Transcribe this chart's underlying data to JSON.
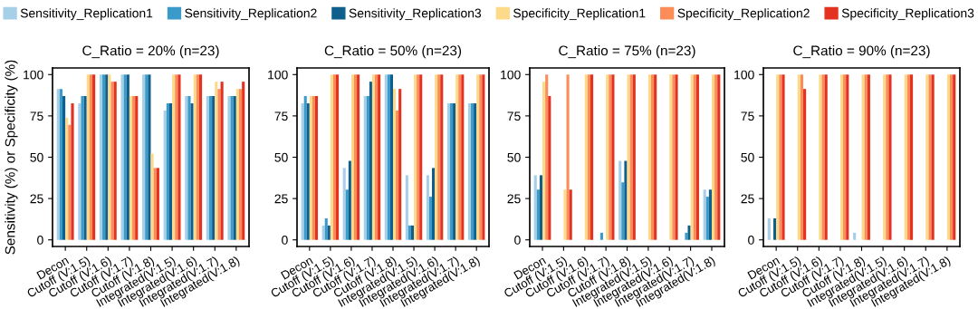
{
  "chart_data": [
    {
      "type": "bar",
      "title": "C_Ratio = 20% (n=23)",
      "ylabel": "Sensitivity (%) or Specificity (%)",
      "legend": "top",
      "grid": false,
      "categories": [
        "Decon",
        "Cutoff (V:1.5)",
        "Cutoff (V:1.6)",
        "Cutoff (V:1.7)",
        "Cutoff (V:1.8)",
        "Integrated(V:1.5)",
        "Integrated(V:1.6)",
        "Integrated(V:1.7)",
        "Integrated(V:1.8)"
      ],
      "ylim": [
        -4,
        104
      ],
      "yticks": [
        0,
        25,
        50,
        75,
        100
      ],
      "series": [
        {
          "name": "Sensitivity_Replication1",
          "color": "#a6cfe8",
          "values": [
            91.3,
            82.6,
            100,
            100,
            100,
            78.3,
            87,
            87,
            87
          ]
        },
        {
          "name": "Sensitivity_Replication2",
          "color": "#3a9ac9",
          "values": [
            91.3,
            87,
            100,
            100,
            100,
            82.6,
            87,
            87,
            87
          ]
        },
        {
          "name": "Sensitivity_Replication3",
          "color": "#0f5f8c",
          "values": [
            87,
            87,
            100,
            100,
            100,
            82.6,
            82.6,
            87,
            87
          ]
        },
        {
          "name": "Specificity_Replication1",
          "color": "#fdd98a",
          "values": [
            73.9,
            100,
            100,
            87,
            52.2,
            100,
            100,
            95.7,
            91.3
          ]
        },
        {
          "name": "Specificity_Replication2",
          "color": "#fc8d59",
          "values": [
            69.6,
            100,
            95.7,
            87,
            43.5,
            100,
            100,
            91.3,
            91.3
          ]
        },
        {
          "name": "Specificity_Replication3",
          "color": "#e3321f",
          "values": [
            82.6,
            100,
            95.7,
            87,
            43.5,
            100,
            100,
            95.7,
            95.7
          ]
        }
      ]
    },
    {
      "type": "bar",
      "title": "C_Ratio = 50% (n=23)",
      "grid": false,
      "categories": [
        "Decon",
        "Cutoff (V:1.5)",
        "Cutoff (V:1.6)",
        "Cutoff (V:1.7)",
        "Cutoff (V:1.8)",
        "Integrated(V:1.5)",
        "Integrated(V:1.6)",
        "Integrated(V:1.7)",
        "Integrated(V:1.8)"
      ],
      "ylim": [
        -4,
        104
      ],
      "yticks": [
        0,
        25,
        50,
        75,
        100
      ],
      "series": [
        {
          "color": "#a6cfe8",
          "values": [
            82.6,
            8.7,
            43.5,
            87,
            100,
            39.1,
            39.1,
            82.6,
            82.6
          ]
        },
        {
          "color": "#3a9ac9",
          "values": [
            87,
            13,
            30.4,
            87,
            100,
            8.7,
            26.1,
            82.6,
            82.6
          ]
        },
        {
          "color": "#0f5f8c",
          "values": [
            82.6,
            8.7,
            47.8,
            95.7,
            100,
            8.7,
            43.5,
            82.6,
            82.6
          ]
        },
        {
          "color": "#fdd98a",
          "values": [
            87,
            100,
            100,
            100,
            91.3,
            100,
            100,
            100,
            100
          ]
        },
        {
          "color": "#fc8d59",
          "values": [
            87,
            100,
            100,
            100,
            78.3,
            100,
            100,
            100,
            100
          ]
        },
        {
          "color": "#e3321f",
          "values": [
            87,
            100,
            100,
            100,
            91.3,
            100,
            100,
            100,
            100
          ]
        }
      ]
    },
    {
      "type": "bar",
      "title": "C_Ratio = 75% (n=23)",
      "grid": false,
      "categories": [
        "Decon",
        "Cutoff (V:1.5)",
        "Cutoff (V:1.6)",
        "Cutoff (V:1.7)",
        "Cutoff (V:1.8)",
        "Integrated(V:1.5)",
        "Integrated(V:1.6)",
        "Integrated(V:1.7)",
        "Integrated(V:1.8)"
      ],
      "ylim": [
        -4,
        104
      ],
      "yticks": [
        0,
        25,
        50,
        75,
        100
      ],
      "series": [
        {
          "color": "#a6cfe8",
          "values": [
            39.1,
            0,
            0,
            0,
            47.8,
            0,
            0,
            0,
            30.4
          ]
        },
        {
          "color": "#3a9ac9",
          "values": [
            30.4,
            0,
            0,
            4.3,
            34.8,
            0,
            0,
            4.3,
            26.1
          ]
        },
        {
          "color": "#0f5f8c",
          "values": [
            39.1,
            0,
            0,
            0,
            47.8,
            0,
            0,
            8.7,
            30.4
          ]
        },
        {
          "color": "#fdd98a",
          "values": [
            95.7,
            30.4,
            100,
            100,
            100,
            100,
            100,
            100,
            100
          ]
        },
        {
          "color": "#fc8d59",
          "values": [
            100,
            100,
            100,
            100,
            100,
            100,
            100,
            100,
            100
          ]
        },
        {
          "color": "#e3321f",
          "values": [
            87,
            30.4,
            100,
            100,
            100,
            100,
            100,
            100,
            100
          ]
        }
      ]
    },
    {
      "type": "bar",
      "title": "C_Ratio = 90% (n=23)",
      "grid": false,
      "categories": [
        "Decon",
        "Cutoff (V:1.5)",
        "Cutoff (V:1.6)",
        "Cutoff (V:1.7)",
        "Cutoff (V:1.8)",
        "Integrated(V:1.5)",
        "Integrated(V:1.6)",
        "Integrated(V:1.7)",
        "Integrated(V:1.8)"
      ],
      "ylim": [
        -4,
        104
      ],
      "yticks": [
        0,
        25,
        50,
        75,
        100
      ],
      "series": [
        {
          "color": "#a6cfe8",
          "values": [
            13,
            0,
            0,
            0,
            4.3,
            0,
            0,
            0,
            0
          ]
        },
        {
          "color": "#3a9ac9",
          "values": [
            0,
            0,
            0,
            0,
            0,
            0,
            0,
            0,
            0
          ]
        },
        {
          "color": "#0f5f8c",
          "values": [
            13,
            0,
            0,
            0,
            0,
            0,
            0,
            0,
            0
          ]
        },
        {
          "color": "#fdd98a",
          "values": [
            100,
            100,
            100,
            100,
            100,
            100,
            100,
            100,
            100
          ]
        },
        {
          "color": "#fc8d59",
          "values": [
            100,
            100,
            100,
            100,
            100,
            100,
            100,
            100,
            100
          ]
        },
        {
          "color": "#e3321f",
          "values": [
            100,
            91.3,
            100,
            100,
            100,
            100,
            100,
            100,
            100
          ]
        }
      ]
    }
  ]
}
